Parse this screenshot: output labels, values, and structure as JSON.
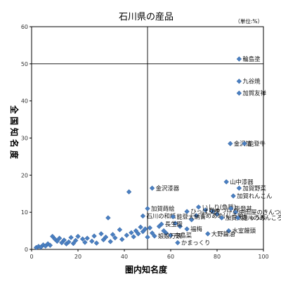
{
  "chart_data": {
    "type": "scatter",
    "title": "石川県の産品",
    "unit_note": "（単位:%）",
    "xlabel": "圏内知名度",
    "ylabel": "全国知名度",
    "xlim": [
      0,
      100
    ],
    "ylim": [
      0,
      60
    ],
    "xticks": [
      0,
      20,
      40,
      60,
      80,
      100
    ],
    "yticks": [
      0,
      10,
      20,
      30,
      40,
      50,
      60
    ],
    "reference_lines": {
      "x": 50,
      "y": 50
    },
    "grid": false,
    "marker_color": "#4a7fc1",
    "labeled_points": [
      {
        "label": "輪島塗",
        "x": 89.5,
        "y": 51.3
      },
      {
        "label": "九谷焼",
        "x": 89.5,
        "y": 45.3
      },
      {
        "label": "加賀友禅",
        "x": 89.5,
        "y": 42.1
      },
      {
        "label": "金沢箔",
        "x": 85.7,
        "y": 28.5
      },
      {
        "label": "能登牛",
        "x": 91.8,
        "y": 28.5
      },
      {
        "label": "山中漆器",
        "x": 84.0,
        "y": 18.2
      },
      {
        "label": "金沢漆器",
        "x": 52.0,
        "y": 16.5
      },
      {
        "label": "加賀野菜",
        "x": 89.5,
        "y": 16.5
      },
      {
        "label": "加賀れんこん",
        "x": 87.0,
        "y": 14.4
      },
      {
        "label": "いしり(魚醤)",
        "x": 72.0,
        "y": 11.4
      },
      {
        "label": "加賀蒔絵",
        "x": 50.0,
        "y": 11.0
      },
      {
        "label": "ひゃっぱん",
        "x": 75.0,
        "y": 10.6
      },
      {
        "label": "能登丼",
        "x": 86.0,
        "y": 11.0
      },
      {
        "label": "中田屋のきんつば",
        "x": 88.0,
        "y": 10.0
      },
      {
        "label": "ひっぱり餅",
        "x": 67.0,
        "y": 10.2
      },
      {
        "label": "石川の和紙",
        "x": 48.0,
        "y": 9.0
      },
      {
        "label": "るめあめ(じろ飴)",
        "x": 71.0,
        "y": 9.1
      },
      {
        "label": "能登大納言",
        "x": 61.0,
        "y": 8.8
      },
      {
        "label": "加賀太きゅうり",
        "x": 82.0,
        "y": 8.5
      },
      {
        "label": "森八のあんころ餅",
        "x": 89.0,
        "y": 8.5
      },
      {
        "label": "長生殿",
        "x": 56.0,
        "y": 6.8
      },
      {
        "label": "福梅",
        "x": 67.0,
        "y": 5.5
      },
      {
        "label": "水室饅頭",
        "x": 85.0,
        "y": 5.0
      },
      {
        "label": "大野醤油",
        "x": 76.0,
        "y": 4.2
      },
      {
        "label": "中島菜",
        "x": 60.0,
        "y": 3.8
      },
      {
        "label": "娘娘万頭",
        "x": 53.0,
        "y": 3.6
      },
      {
        "label": "かまっくり",
        "x": 63.0,
        "y": 1.8
      }
    ],
    "unlabeled_points": [
      {
        "x": 2,
        "y": 0.5
      },
      {
        "x": 3,
        "y": 0.8
      },
      {
        "x": 4,
        "y": 0.6
      },
      {
        "x": 5,
        "y": 1.2
      },
      {
        "x": 6,
        "y": 0.9
      },
      {
        "x": 7,
        "y": 1.5
      },
      {
        "x": 8,
        "y": 1.1
      },
      {
        "x": 9,
        "y": 3.5
      },
      {
        "x": 10,
        "y": 2.8
      },
      {
        "x": 11,
        "y": 2.2
      },
      {
        "x": 12,
        "y": 3.0
      },
      {
        "x": 13,
        "y": 1.8
      },
      {
        "x": 14,
        "y": 2.5
      },
      {
        "x": 15,
        "y": 1.5
      },
      {
        "x": 16,
        "y": 2.0
      },
      {
        "x": 17,
        "y": 3.2
      },
      {
        "x": 18,
        "y": 1.6
      },
      {
        "x": 19,
        "y": 2.4
      },
      {
        "x": 20,
        "y": 3.5
      },
      {
        "x": 22,
        "y": 2.8
      },
      {
        "x": 23,
        "y": 1.9
      },
      {
        "x": 24,
        "y": 3.0
      },
      {
        "x": 26,
        "y": 2.2
      },
      {
        "x": 27,
        "y": 3.6
      },
      {
        "x": 28,
        "y": 1.7
      },
      {
        "x": 30,
        "y": 4.2
      },
      {
        "x": 31,
        "y": 2.6
      },
      {
        "x": 32,
        "y": 3.3
      },
      {
        "x": 33,
        "y": 8.5
      },
      {
        "x": 34,
        "y": 2.1
      },
      {
        "x": 35,
        "y": 4.0
      },
      {
        "x": 36,
        "y": 3.1
      },
      {
        "x": 38,
        "y": 5.3
      },
      {
        "x": 39,
        "y": 2.7
      },
      {
        "x": 41,
        "y": 3.8
      },
      {
        "x": 42,
        "y": 15.5
      },
      {
        "x": 43,
        "y": 4.5
      },
      {
        "x": 44,
        "y": 3.4
      },
      {
        "x": 45,
        "y": 5.0
      },
      {
        "x": 46,
        "y": 4.2
      },
      {
        "x": 47,
        "y": 6.0
      },
      {
        "x": 48,
        "y": 4.8
      },
      {
        "x": 49,
        "y": 5.5
      },
      {
        "x": 50,
        "y": 3.3
      },
      {
        "x": 51,
        "y": 5.8
      },
      {
        "x": 52,
        "y": 4.4
      },
      {
        "x": 55,
        "y": 6.2
      },
      {
        "x": 57,
        "y": 5.0
      },
      {
        "x": 58,
        "y": 4.4
      },
      {
        "x": 62,
        "y": 7.0
      },
      {
        "x": 64,
        "y": 6.2
      },
      {
        "x": 69,
        "y": 8.0
      },
      {
        "x": 78,
        "y": 10.2
      },
      {
        "x": 80,
        "y": 9.5
      }
    ]
  }
}
